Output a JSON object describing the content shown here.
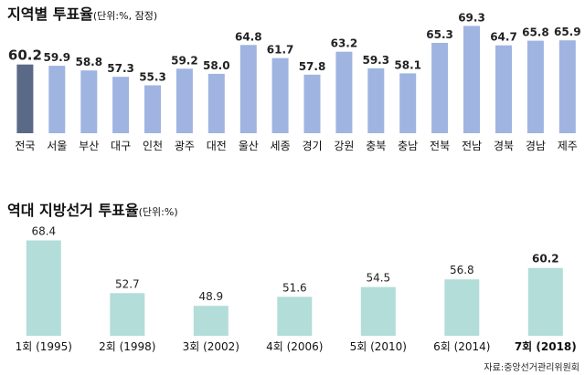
{
  "chart_data": [
    {
      "type": "bar",
      "title": "지역별 투표율",
      "subtitle": "(단위:%, 잠정)",
      "categories": [
        "전국",
        "서울",
        "부산",
        "대구",
        "인천",
        "광주",
        "대전",
        "울산",
        "세종",
        "경기",
        "강원",
        "충북",
        "충남",
        "전북",
        "전남",
        "경북",
        "경남",
        "제주"
      ],
      "values": [
        60.2,
        59.9,
        58.8,
        57.3,
        55.3,
        59.2,
        58.0,
        64.8,
        61.7,
        57.8,
        63.2,
        59.3,
        58.1,
        65.3,
        69.3,
        64.7,
        65.8,
        65.9
      ],
      "value_labels": [
        "60.2",
        "59.9",
        "58.8",
        "57.3",
        "55.3",
        "59.2",
        "58.0",
        "64.8",
        "61.7",
        "57.8",
        "63.2",
        "59.3",
        "58.1",
        "65.3",
        "69.3",
        "64.7",
        "65.8",
        "65.9"
      ],
      "highlight_index": 0,
      "colors": {
        "bar": "#9fb4e0",
        "highlight": "#5a6a86",
        "label": "#222222"
      }
    },
    {
      "type": "bar",
      "title": "역대 지방선거 투표율",
      "subtitle": "(단위:%)",
      "categories": [
        "1회 (1995)",
        "2회 (1998)",
        "3회 (2002)",
        "4회 (2006)",
        "5회 (2010)",
        "6회 (2014)",
        "7회 (2018)"
      ],
      "values": [
        68.4,
        52.7,
        48.9,
        51.6,
        54.5,
        56.8,
        60.2
      ],
      "value_labels": [
        "68.4",
        "52.7",
        "48.9",
        "51.6",
        "54.5",
        "56.8",
        "60.2"
      ],
      "highlight_index": 6,
      "colors": {
        "bar": "#b2ddd9",
        "label": "#222222"
      }
    }
  ],
  "source": "자료:중앙선거관리위원회"
}
